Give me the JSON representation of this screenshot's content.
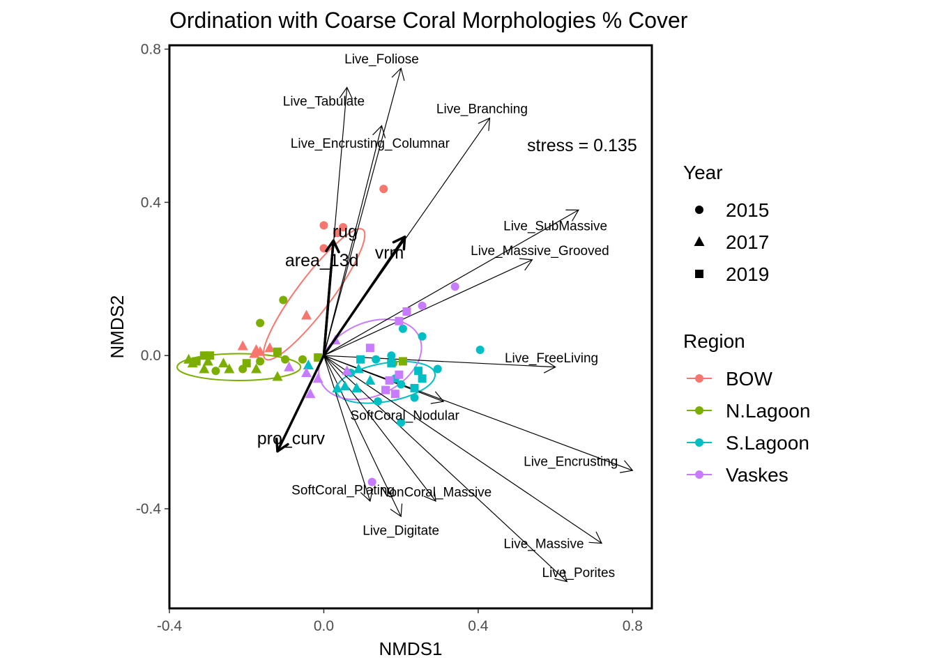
{
  "chart_data": {
    "type": "scatter",
    "title": "Ordination with Coarse Coral Morphologies % Cover",
    "xlabel": "NMDS1",
    "ylabel": "NMDS2",
    "xlim": [
      -0.4,
      0.85
    ],
    "ylim": [
      -0.66,
      0.81
    ],
    "x_ticks": [
      -0.4,
      0.0,
      0.4,
      0.8
    ],
    "x_tick_labels": [
      "-0.4",
      "0.0",
      "0.4",
      "0.8"
    ],
    "y_ticks": [
      -0.4,
      0.0,
      0.4,
      0.8
    ],
    "y_tick_labels": [
      "-0.4",
      "0.0",
      "0.4",
      "0.8"
    ],
    "grid": false,
    "stress_label": "stress = 0.135",
    "legend_placement": "right",
    "legend": {
      "shape": {
        "title": "Year",
        "entries": [
          {
            "label": "2015",
            "shape": "circle"
          },
          {
            "label": "2017",
            "shape": "triangle"
          },
          {
            "label": "2019",
            "shape": "square"
          }
        ]
      },
      "color": {
        "title": "Region",
        "entries": [
          {
            "label": "BOW",
            "color": "#F8766D"
          },
          {
            "label": "N.Lagoon",
            "color": "#7CAE00"
          },
          {
            "label": "S.Lagoon",
            "color": "#00BFC4"
          },
          {
            "label": "Vaskes",
            "color": "#C77CFF"
          }
        ]
      }
    },
    "ellipses": [
      {
        "region": "BOW",
        "color": "#F8766D",
        "cx": -0.025,
        "cy": 0.16,
        "rx": 0.21,
        "ry": 0.045,
        "angle": 53
      },
      {
        "region": "N.Lagoon",
        "color": "#7CAE00",
        "cx": -0.22,
        "cy": -0.03,
        "rx": 0.16,
        "ry": 0.035,
        "angle": 0
      },
      {
        "region": "S.Lagoon",
        "color": "#00BFC4",
        "cx": 0.16,
        "cy": -0.07,
        "rx": 0.13,
        "ry": 0.05,
        "angle": 10
      },
      {
        "region": "Vaskes",
        "color": "#C77CFF",
        "cx": 0.12,
        "cy": -0.01,
        "rx": 0.14,
        "ry": 0.095,
        "angle": 25
      }
    ],
    "species_vectors": [
      {
        "label": "Live_Foliose",
        "x": 0.2,
        "y": 0.75,
        "lx": 0.15,
        "ly": 0.775
      },
      {
        "label": "Live_Tabulate",
        "x": 0.06,
        "y": 0.7,
        "lx": 0.0,
        "ly": 0.665
      },
      {
        "label": "Live_Encrusting_Columnar",
        "x": 0.15,
        "y": 0.6,
        "lx": 0.12,
        "ly": 0.555
      },
      {
        "label": "Live_Branching",
        "x": 0.43,
        "y": 0.62,
        "lx": 0.41,
        "ly": 0.645
      },
      {
        "label": "Live_SubMassive",
        "x": 0.66,
        "y": 0.38,
        "lx": 0.6,
        "ly": 0.34
      },
      {
        "label": "Live_Massive_Grooved",
        "x": 0.54,
        "y": 0.25,
        "lx": 0.56,
        "ly": 0.275
      },
      {
        "label": "Live_FreeLiving",
        "x": 0.6,
        "y": -0.03,
        "lx": 0.59,
        "ly": -0.005
      },
      {
        "label": "SoftCoral_Nodular",
        "x": 0.31,
        "y": -0.12,
        "lx": 0.21,
        "ly": -0.155
      },
      {
        "label": "Live_Encrusting",
        "x": 0.8,
        "y": -0.3,
        "lx": 0.64,
        "ly": -0.275
      },
      {
        "label": "SoftCoral_Plating",
        "x": 0.12,
        "y": -0.38,
        "lx": 0.05,
        "ly": -0.35
      },
      {
        "label": "NonCoral_Massive",
        "x": 0.29,
        "y": -0.38,
        "lx": 0.29,
        "ly": -0.355
      },
      {
        "label": "Live_Digitate",
        "x": 0.2,
        "y": -0.42,
        "lx": 0.2,
        "ly": -0.455
      },
      {
        "label": "Live_Massive",
        "x": 0.72,
        "y": -0.49,
        "lx": 0.57,
        "ly": -0.49
      },
      {
        "label": "Live_Porites",
        "x": 0.63,
        "y": -0.59,
        "lx": 0.66,
        "ly": -0.565
      }
    ],
    "env_vectors": [
      {
        "label": "rug",
        "x": 0.025,
        "y": 0.3,
        "lx": 0.055,
        "ly": 0.325
      },
      {
        "label": "area_13d",
        "x": 0.025,
        "y": 0.3,
        "lx": -0.005,
        "ly": 0.25
      },
      {
        "label": "vrm",
        "x": 0.21,
        "y": 0.31,
        "lx": 0.17,
        "ly": 0.27
      },
      {
        "label": "pro_curv",
        "x": -0.12,
        "y": -0.25,
        "lx": -0.085,
        "ly": -0.215
      }
    ],
    "series": [
      {
        "name": "BOW",
        "color": "#F8766D",
        "points": [
          {
            "x": 0.155,
            "y": 0.435,
            "shape": "circle"
          },
          {
            "x": 0.0,
            "y": 0.34,
            "shape": "circle"
          },
          {
            "x": 0.05,
            "y": 0.335,
            "shape": "circle"
          },
          {
            "x": 0.035,
            "y": 0.32,
            "shape": "circle"
          },
          {
            "x": 0.0,
            "y": 0.28,
            "shape": "circle"
          },
          {
            "x": -0.045,
            "y": 0.105,
            "shape": "triangle"
          },
          {
            "x": -0.21,
            "y": 0.025,
            "shape": "triangle"
          },
          {
            "x": -0.175,
            "y": 0.015,
            "shape": "triangle"
          },
          {
            "x": -0.165,
            "y": 0.01,
            "shape": "triangle"
          },
          {
            "x": -0.14,
            "y": 0.02,
            "shape": "triangle"
          },
          {
            "x": -0.18,
            "y": 0.005,
            "shape": "triangle"
          }
        ]
      },
      {
        "name": "N.Lagoon",
        "color": "#7CAE00",
        "points": [
          {
            "x": -0.105,
            "y": 0.145,
            "shape": "circle"
          },
          {
            "x": -0.165,
            "y": 0.085,
            "shape": "circle"
          },
          {
            "x": -0.1,
            "y": -0.01,
            "shape": "circle"
          },
          {
            "x": -0.055,
            "y": -0.01,
            "shape": "circle"
          },
          {
            "x": -0.28,
            "y": -0.04,
            "shape": "circle"
          },
          {
            "x": -0.21,
            "y": -0.035,
            "shape": "circle"
          },
          {
            "x": -0.165,
            "y": -0.015,
            "shape": "circle"
          },
          {
            "x": 0.18,
            "y": -0.02,
            "shape": "circle"
          },
          {
            "x": -0.35,
            "y": -0.01,
            "shape": "triangle"
          },
          {
            "x": -0.34,
            "y": -0.02,
            "shape": "triangle"
          },
          {
            "x": -0.31,
            "y": -0.035,
            "shape": "triangle"
          },
          {
            "x": -0.3,
            "y": -0.015,
            "shape": "triangle"
          },
          {
            "x": -0.26,
            "y": -0.02,
            "shape": "triangle"
          },
          {
            "x": -0.245,
            "y": -0.035,
            "shape": "triangle"
          },
          {
            "x": -0.175,
            "y": -0.035,
            "shape": "triangle"
          },
          {
            "x": -0.12,
            "y": -0.055,
            "shape": "triangle"
          },
          {
            "x": -0.33,
            "y": -0.015,
            "shape": "square"
          },
          {
            "x": -0.31,
            "y": 0.0,
            "shape": "square"
          },
          {
            "x": -0.295,
            "y": 0.0,
            "shape": "square"
          },
          {
            "x": -0.2,
            "y": -0.02,
            "shape": "square"
          },
          {
            "x": -0.12,
            "y": 0.01,
            "shape": "square"
          },
          {
            "x": -0.015,
            "y": -0.005,
            "shape": "square"
          },
          {
            "x": 0.205,
            "y": -0.015,
            "shape": "square"
          }
        ]
      },
      {
        "name": "S.Lagoon",
        "color": "#00BFC4",
        "points": [
          {
            "x": 0.405,
            "y": 0.015,
            "shape": "circle"
          },
          {
            "x": 0.255,
            "y": 0.05,
            "shape": "circle"
          },
          {
            "x": 0.205,
            "y": 0.07,
            "shape": "circle"
          },
          {
            "x": 0.175,
            "y": 0.0,
            "shape": "circle"
          },
          {
            "x": 0.135,
            "y": -0.01,
            "shape": "circle"
          },
          {
            "x": 0.295,
            "y": -0.035,
            "shape": "circle"
          },
          {
            "x": 0.07,
            "y": -0.045,
            "shape": "circle"
          },
          {
            "x": 0.185,
            "y": -0.06,
            "shape": "circle"
          },
          {
            "x": 0.2,
            "y": -0.075,
            "shape": "circle"
          },
          {
            "x": 0.235,
            "y": -0.11,
            "shape": "circle"
          },
          {
            "x": 0.14,
            "y": -0.12,
            "shape": "circle"
          },
          {
            "x": 0.2,
            "y": -0.175,
            "shape": "circle"
          },
          {
            "x": 0.09,
            "y": -0.035,
            "shape": "triangle"
          },
          {
            "x": 0.12,
            "y": -0.065,
            "shape": "triangle"
          },
          {
            "x": 0.055,
            "y": -0.08,
            "shape": "triangle"
          },
          {
            "x": 0.035,
            "y": -0.085,
            "shape": "triangle"
          },
          {
            "x": 0.085,
            "y": -0.085,
            "shape": "triangle"
          },
          {
            "x": -0.04,
            "y": -0.025,
            "shape": "triangle"
          },
          {
            "x": 0.095,
            "y": -0.01,
            "shape": "square"
          },
          {
            "x": 0.175,
            "y": -0.02,
            "shape": "square"
          },
          {
            "x": 0.245,
            "y": -0.04,
            "shape": "square"
          },
          {
            "x": 0.255,
            "y": -0.06,
            "shape": "square"
          },
          {
            "x": 0.235,
            "y": -0.085,
            "shape": "square"
          }
        ]
      },
      {
        "name": "Vaskes",
        "color": "#C77CFF",
        "points": [
          {
            "x": 0.34,
            "y": 0.18,
            "shape": "circle"
          },
          {
            "x": 0.255,
            "y": 0.13,
            "shape": "circle"
          },
          {
            "x": 0.125,
            "y": -0.33,
            "shape": "circle"
          },
          {
            "x": 0.215,
            "y": 0.115,
            "shape": "square"
          },
          {
            "x": 0.195,
            "y": 0.09,
            "shape": "square"
          },
          {
            "x": 0.12,
            "y": 0.02,
            "shape": "square"
          },
          {
            "x": 0.195,
            "y": -0.05,
            "shape": "square"
          },
          {
            "x": 0.17,
            "y": -0.065,
            "shape": "square"
          },
          {
            "x": 0.16,
            "y": -0.09,
            "shape": "square"
          },
          {
            "x": 0.185,
            "y": -0.1,
            "shape": "square"
          },
          {
            "x": 0.03,
            "y": 0.04,
            "shape": "triangle"
          },
          {
            "x": -0.09,
            "y": -0.03,
            "shape": "triangle"
          },
          {
            "x": -0.045,
            "y": -0.045,
            "shape": "triangle"
          },
          {
            "x": -0.015,
            "y": -0.06,
            "shape": "triangle"
          },
          {
            "x": -0.035,
            "y": -0.1,
            "shape": "triangle"
          },
          {
            "x": 0.06,
            "y": -0.04,
            "shape": "triangle"
          }
        ]
      }
    ]
  }
}
